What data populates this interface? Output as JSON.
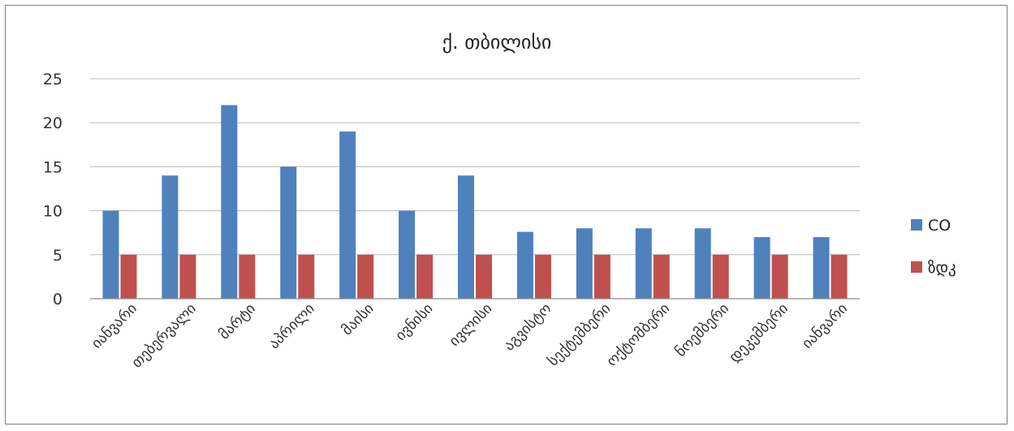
{
  "chart_data": {
    "type": "bar",
    "title": "ქ. თბილისი",
    "xlabel": "",
    "ylabel": "",
    "categories": [
      "იანვარი",
      "თებერვალი",
      "მარტი",
      "აპრილი",
      "მაისი",
      "ივნისი",
      "ივლისი",
      "აგვისტო",
      "სექტემბერი",
      "ოქტომბერი",
      "ნოემბერი",
      "დეკემბერი",
      "იანვარი"
    ],
    "series": [
      {
        "name": "CO",
        "color": "#4f81bd",
        "values": [
          10,
          14,
          22,
          15,
          19,
          10,
          14,
          7.6,
          8,
          8,
          8,
          7,
          7
        ]
      },
      {
        "name": "ზდკ",
        "color": "#c0504d",
        "values": [
          5,
          5,
          5,
          5,
          5,
          5,
          5,
          5,
          5,
          5,
          5,
          5,
          5
        ]
      }
    ],
    "ylim": [
      0,
      25
    ],
    "yticks": [
      0,
      5,
      10,
      15,
      20,
      25
    ],
    "grid": true,
    "legend_position": "right"
  }
}
